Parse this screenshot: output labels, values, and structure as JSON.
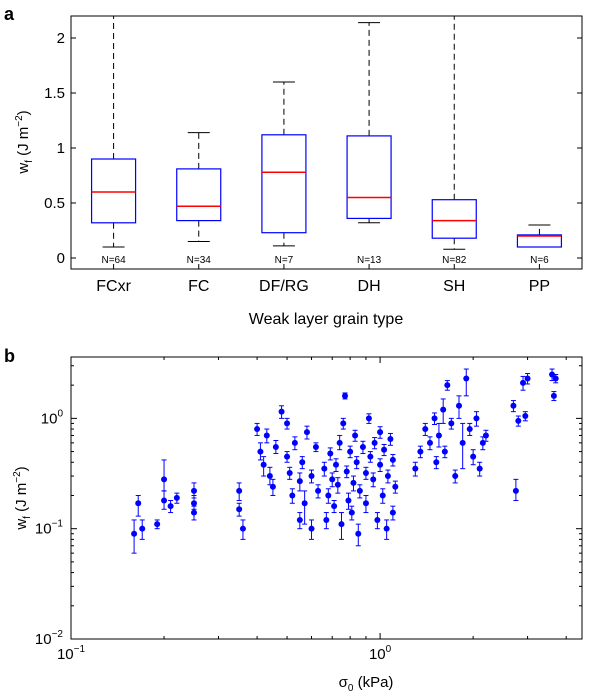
{
  "chart_data": [
    {
      "panel_label": "a",
      "type": "box",
      "xlabel": "Weak layer grain type",
      "ylabel_main": "w",
      "ylabel_sub": "f",
      "ylabel_unit": " (J m",
      "ylabel_exp": "−2",
      "ylabel_close": ")",
      "ylim": [
        -0.1,
        2.2
      ],
      "yticks": [
        0,
        0.5,
        1,
        1.5,
        2
      ],
      "ytick_labels": [
        "0",
        "0.5",
        "1",
        "1.5",
        "2"
      ],
      "box_color": "#0000ff",
      "median_color": "#ff0000",
      "whisker_color": "#000000",
      "categories": [
        {
          "name": "FCxr",
          "n_label": "N=64",
          "whisker_low": 0.1,
          "q1": 0.32,
          "median": 0.6,
          "q3": 0.9,
          "whisker_high": 2.2
        },
        {
          "name": "FC",
          "n_label": "N=34",
          "whisker_low": 0.15,
          "q1": 0.34,
          "median": 0.47,
          "q3": 0.81,
          "whisker_high": 1.14
        },
        {
          "name": "DF/RG",
          "n_label": "N=7",
          "whisker_low": 0.11,
          "q1": 0.23,
          "median": 0.78,
          "q3": 1.12,
          "whisker_high": 1.6
        },
        {
          "name": "DH",
          "n_label": "N=13",
          "whisker_low": 0.32,
          "q1": 0.36,
          "median": 0.55,
          "q3": 1.11,
          "whisker_high": 2.14
        },
        {
          "name": "SH",
          "n_label": "N=82",
          "whisker_low": 0.08,
          "q1": 0.18,
          "median": 0.34,
          "q3": 0.53,
          "whisker_high": 2.2
        },
        {
          "name": "PP",
          "n_label": "N=6",
          "whisker_low": 0.1,
          "q1": 0.1,
          "median": 0.2,
          "q3": 0.21,
          "whisker_high": 0.3
        }
      ]
    },
    {
      "panel_label": "b",
      "type": "scatter",
      "x_scale": "log",
      "y_scale": "log",
      "xlabel_main": "σ",
      "xlabel_sub": "0",
      "xlabel_unit": " (kPa)",
      "ylabel_main": "w",
      "ylabel_sub": "f",
      "ylabel_unit": " (J m",
      "ylabel_exp": "−2",
      "ylabel_close": ")",
      "xlim": [
        0.1,
        4.5
      ],
      "ylim": [
        0.01,
        3.6
      ],
      "xticks": [
        {
          "value": 0.1,
          "base": "10",
          "exp": "−1"
        },
        {
          "value": 1,
          "base": "10",
          "exp": "0"
        }
      ],
      "yticks": [
        {
          "value": 0.01,
          "base": "10",
          "exp": "−2"
        },
        {
          "value": 0.1,
          "base": "10",
          "exp": "−1"
        },
        {
          "value": 1,
          "base": "10",
          "exp": "0"
        }
      ],
      "marker_color": "#0000ff",
      "points": [
        {
          "x": 0.16,
          "y": 0.09,
          "lo": 0.06,
          "hi": 0.12
        },
        {
          "x": 0.165,
          "y": 0.17,
          "lo": 0.13,
          "hi": 0.2
        },
        {
          "x": 0.17,
          "y": 0.1,
          "lo": 0.08,
          "hi": 0.12
        },
        {
          "x": 0.19,
          "y": 0.11,
          "lo": 0.1,
          "hi": 0.12
        },
        {
          "x": 0.2,
          "y": 0.28,
          "lo": 0.22,
          "hi": 0.42
        },
        {
          "x": 0.2,
          "y": 0.18,
          "lo": 0.15,
          "hi": 0.22
        },
        {
          "x": 0.21,
          "y": 0.16,
          "lo": 0.14,
          "hi": 0.18
        },
        {
          "x": 0.22,
          "y": 0.19,
          "lo": 0.17,
          "hi": 0.21
        },
        {
          "x": 0.25,
          "y": 0.22,
          "lo": 0.19,
          "hi": 0.26
        },
        {
          "x": 0.25,
          "y": 0.14,
          "lo": 0.12,
          "hi": 0.16
        },
        {
          "x": 0.25,
          "y": 0.17,
          "lo": 0.15,
          "hi": 0.2
        },
        {
          "x": 0.35,
          "y": 0.22,
          "lo": 0.18,
          "hi": 0.26
        },
        {
          "x": 0.35,
          "y": 0.15,
          "lo": 0.13,
          "hi": 0.17
        },
        {
          "x": 0.36,
          "y": 0.1,
          "lo": 0.08,
          "hi": 0.12
        },
        {
          "x": 0.4,
          "y": 0.8,
          "lo": 0.7,
          "hi": 0.9
        },
        {
          "x": 0.41,
          "y": 0.5,
          "lo": 0.42,
          "hi": 0.6
        },
        {
          "x": 0.42,
          "y": 0.38,
          "lo": 0.3,
          "hi": 0.45
        },
        {
          "x": 0.43,
          "y": 0.7,
          "lo": 0.6,
          "hi": 0.8
        },
        {
          "x": 0.44,
          "y": 0.3,
          "lo": 0.25,
          "hi": 0.36
        },
        {
          "x": 0.45,
          "y": 0.24,
          "lo": 0.2,
          "hi": 0.28
        },
        {
          "x": 0.46,
          "y": 0.55,
          "lo": 0.48,
          "hi": 0.63
        },
        {
          "x": 0.48,
          "y": 1.15,
          "lo": 1.0,
          "hi": 1.3
        },
        {
          "x": 0.5,
          "y": 0.9,
          "lo": 0.8,
          "hi": 1.0
        },
        {
          "x": 0.5,
          "y": 0.45,
          "lo": 0.4,
          "hi": 0.5
        },
        {
          "x": 0.51,
          "y": 0.32,
          "lo": 0.28,
          "hi": 0.36
        },
        {
          "x": 0.52,
          "y": 0.2,
          "lo": 0.17,
          "hi": 0.23
        },
        {
          "x": 0.53,
          "y": 0.6,
          "lo": 0.52,
          "hi": 0.68
        },
        {
          "x": 0.55,
          "y": 0.27,
          "lo": 0.22,
          "hi": 0.32
        },
        {
          "x": 0.55,
          "y": 0.12,
          "lo": 0.1,
          "hi": 0.14
        },
        {
          "x": 0.56,
          "y": 0.4,
          "lo": 0.35,
          "hi": 0.45
        },
        {
          "x": 0.57,
          "y": 0.17,
          "lo": 0.11,
          "hi": 0.22
        },
        {
          "x": 0.58,
          "y": 0.75,
          "lo": 0.65,
          "hi": 0.85
        },
        {
          "x": 0.6,
          "y": 0.1,
          "lo": 0.08,
          "hi": 0.12
        },
        {
          "x": 0.6,
          "y": 0.3,
          "lo": 0.26,
          "hi": 0.34
        },
        {
          "x": 0.62,
          "y": 0.55,
          "lo": 0.5,
          "hi": 0.6
        },
        {
          "x": 0.63,
          "y": 0.22,
          "lo": 0.19,
          "hi": 0.25
        },
        {
          "x": 0.66,
          "y": 0.35,
          "lo": 0.3,
          "hi": 0.4
        },
        {
          "x": 0.67,
          "y": 0.12,
          "lo": 0.1,
          "hi": 0.14
        },
        {
          "x": 0.68,
          "y": 0.2,
          "lo": 0.17,
          "hi": 0.23
        },
        {
          "x": 0.69,
          "y": 0.48,
          "lo": 0.42,
          "hi": 0.54
        },
        {
          "x": 0.7,
          "y": 0.28,
          "lo": 0.24,
          "hi": 0.32
        },
        {
          "x": 0.71,
          "y": 0.16,
          "lo": 0.14,
          "hi": 0.18
        },
        {
          "x": 0.72,
          "y": 0.38,
          "lo": 0.33,
          "hi": 0.43
        },
        {
          "x": 0.73,
          "y": 0.25,
          "lo": 0.21,
          "hi": 0.29
        },
        {
          "x": 0.74,
          "y": 0.6,
          "lo": 0.52,
          "hi": 0.7
        },
        {
          "x": 0.75,
          "y": 0.11,
          "lo": 0.08,
          "hi": 0.14
        },
        {
          "x": 0.76,
          "y": 0.9,
          "lo": 0.8,
          "hi": 1.0
        },
        {
          "x": 0.77,
          "y": 1.6,
          "lo": 1.5,
          "hi": 1.7
        },
        {
          "x": 0.78,
          "y": 0.33,
          "lo": 0.29,
          "hi": 0.37
        },
        {
          "x": 0.79,
          "y": 0.18,
          "lo": 0.15,
          "hi": 0.21
        },
        {
          "x": 0.8,
          "y": 0.5,
          "lo": 0.44,
          "hi": 0.56
        },
        {
          "x": 0.81,
          "y": 0.14,
          "lo": 0.12,
          "hi": 0.16
        },
        {
          "x": 0.82,
          "y": 0.26,
          "lo": 0.22,
          "hi": 0.3
        },
        {
          "x": 0.83,
          "y": 0.7,
          "lo": 0.62,
          "hi": 0.78
        },
        {
          "x": 0.84,
          "y": 0.4,
          "lo": 0.35,
          "hi": 0.45
        },
        {
          "x": 0.85,
          "y": 0.09,
          "lo": 0.07,
          "hi": 0.11
        },
        {
          "x": 0.86,
          "y": 0.22,
          "lo": 0.19,
          "hi": 0.25
        },
        {
          "x": 0.88,
          "y": 0.55,
          "lo": 0.48,
          "hi": 0.62
        },
        {
          "x": 0.9,
          "y": 0.32,
          "lo": 0.28,
          "hi": 0.36
        },
        {
          "x": 0.9,
          "y": 0.17,
          "lo": 0.14,
          "hi": 0.2
        },
        {
          "x": 0.92,
          "y": 1.0,
          "lo": 0.9,
          "hi": 1.1
        },
        {
          "x": 0.93,
          "y": 0.45,
          "lo": 0.4,
          "hi": 0.5
        },
        {
          "x": 0.95,
          "y": 0.28,
          "lo": 0.24,
          "hi": 0.32
        },
        {
          "x": 0.96,
          "y": 0.6,
          "lo": 0.53,
          "hi": 0.67
        },
        {
          "x": 0.98,
          "y": 0.12,
          "lo": 0.1,
          "hi": 0.14
        },
        {
          "x": 1.0,
          "y": 0.38,
          "lo": 0.33,
          "hi": 0.43
        },
        {
          "x": 1.0,
          "y": 0.75,
          "lo": 0.66,
          "hi": 0.84
        },
        {
          "x": 1.02,
          "y": 0.2,
          "lo": 0.17,
          "hi": 0.23
        },
        {
          "x": 1.03,
          "y": 0.52,
          "lo": 0.46,
          "hi": 0.58
        },
        {
          "x": 1.05,
          "y": 0.1,
          "lo": 0.08,
          "hi": 0.12
        },
        {
          "x": 1.06,
          "y": 0.3,
          "lo": 0.26,
          "hi": 0.34
        },
        {
          "x": 1.08,
          "y": 0.65,
          "lo": 0.57,
          "hi": 0.73
        },
        {
          "x": 1.1,
          "y": 0.14,
          "lo": 0.12,
          "hi": 0.16
        },
        {
          "x": 1.1,
          "y": 0.42,
          "lo": 0.37,
          "hi": 0.47
        },
        {
          "x": 1.12,
          "y": 0.24,
          "lo": 0.21,
          "hi": 0.27
        },
        {
          "x": 1.3,
          "y": 0.35,
          "lo": 0.3,
          "hi": 0.4
        },
        {
          "x": 1.35,
          "y": 0.5,
          "lo": 0.44,
          "hi": 0.56
        },
        {
          "x": 1.4,
          "y": 0.8,
          "lo": 0.7,
          "hi": 0.9
        },
        {
          "x": 1.45,
          "y": 0.6,
          "lo": 0.52,
          "hi": 0.68
        },
        {
          "x": 1.5,
          "y": 1.0,
          "lo": 0.88,
          "hi": 1.12
        },
        {
          "x": 1.52,
          "y": 0.4,
          "lo": 0.35,
          "hi": 0.45
        },
        {
          "x": 1.55,
          "y": 0.7,
          "lo": 0.55,
          "hi": 0.9
        },
        {
          "x": 1.6,
          "y": 1.2,
          "lo": 0.9,
          "hi": 1.5
        },
        {
          "x": 1.62,
          "y": 0.5,
          "lo": 0.44,
          "hi": 0.56
        },
        {
          "x": 1.65,
          "y": 2.0,
          "lo": 1.8,
          "hi": 2.2
        },
        {
          "x": 1.7,
          "y": 0.9,
          "lo": 0.8,
          "hi": 1.0
        },
        {
          "x": 1.75,
          "y": 0.3,
          "lo": 0.26,
          "hi": 0.34
        },
        {
          "x": 1.8,
          "y": 1.3,
          "lo": 1.0,
          "hi": 1.6
        },
        {
          "x": 1.85,
          "y": 0.6,
          "lo": 0.35,
          "hi": 0.9
        },
        {
          "x": 1.9,
          "y": 2.3,
          "lo": 1.6,
          "hi": 2.8
        },
        {
          "x": 1.95,
          "y": 0.8,
          "lo": 0.7,
          "hi": 0.9
        },
        {
          "x": 2.0,
          "y": 0.45,
          "lo": 0.38,
          "hi": 0.52
        },
        {
          "x": 2.05,
          "y": 1.0,
          "lo": 0.85,
          "hi": 1.15
        },
        {
          "x": 2.1,
          "y": 0.35,
          "lo": 0.3,
          "hi": 0.4
        },
        {
          "x": 2.15,
          "y": 0.6,
          "lo": 0.52,
          "hi": 0.68
        },
        {
          "x": 2.2,
          "y": 0.7,
          "lo": 0.62,
          "hi": 0.78
        },
        {
          "x": 2.7,
          "y": 1.3,
          "lo": 1.15,
          "hi": 1.45
        },
        {
          "x": 2.75,
          "y": 0.22,
          "lo": 0.18,
          "hi": 0.28
        },
        {
          "x": 2.8,
          "y": 0.95,
          "lo": 0.85,
          "hi": 1.05
        },
        {
          "x": 2.9,
          "y": 2.1,
          "lo": 1.8,
          "hi": 2.4
        },
        {
          "x": 2.95,
          "y": 1.05,
          "lo": 0.95,
          "hi": 1.15
        },
        {
          "x": 3.0,
          "y": 2.3,
          "lo": 2.05,
          "hi": 2.55
        },
        {
          "x": 3.6,
          "y": 2.5,
          "lo": 2.2,
          "hi": 2.8
        },
        {
          "x": 3.65,
          "y": 1.6,
          "lo": 1.45,
          "hi": 1.75
        },
        {
          "x": 3.7,
          "y": 2.3,
          "lo": 2.1,
          "hi": 2.5
        }
      ]
    }
  ]
}
